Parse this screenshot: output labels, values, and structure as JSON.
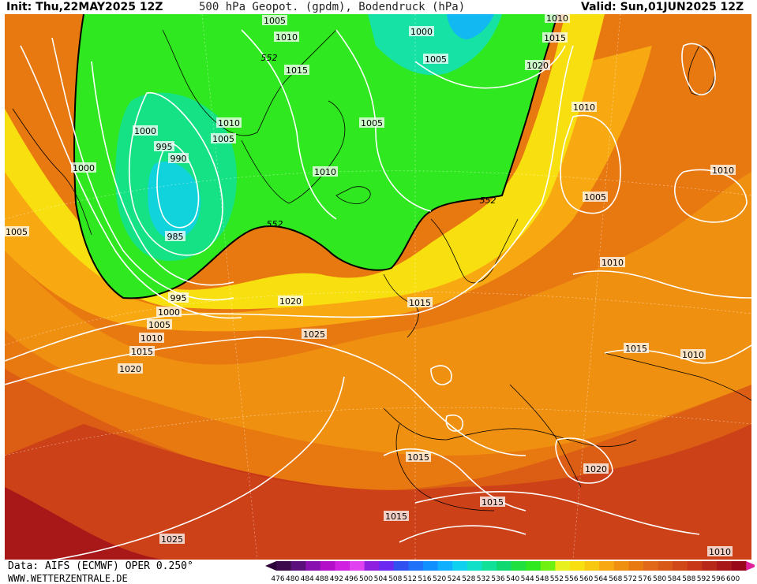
{
  "header": {
    "init": "Init: Thu,22MAY2025 12Z",
    "title": "500 hPa Geopot. (gpdm), Bodendruck (hPa)",
    "valid": "Valid: Sun,01JUN2025 12Z"
  },
  "footer": {
    "source": "Data: AIFS (ECMWF) OPER 0.250°",
    "website": "WWW.WETTERZENTRALE.DE"
  },
  "isobar_labels": [
    "1005",
    "1010",
    "1000",
    "1005",
    "1015",
    "1015",
    "1010",
    "1020",
    "552",
    "1015",
    "1010",
    "1005",
    "1005",
    "1010",
    "1010",
    "1000",
    "995",
    "990",
    "1000",
    "985",
    "1010",
    "1005",
    "1005",
    "552",
    "552",
    "1010",
    "1015",
    "1010",
    "1020",
    "1015",
    "995",
    "1000",
    "1005",
    "1010",
    "1015",
    "1020",
    "1025",
    "1015",
    "1010",
    "1015",
    "1020",
    "1015",
    "1015",
    "1025",
    "1010"
  ],
  "colorbar": {
    "ticks": [
      "476",
      "480",
      "484",
      "488",
      "492",
      "496",
      "500",
      "504",
      "508",
      "512",
      "516",
      "520",
      "524",
      "528",
      "532",
      "536",
      "540",
      "544",
      "548",
      "552",
      "556",
      "560",
      "564",
      "568",
      "572",
      "576",
      "580",
      "584",
      "588",
      "592",
      "596",
      "600"
    ],
    "colors": [
      "#3b0a4a",
      "#5a0f7a",
      "#8a0fb0",
      "#b40fc8",
      "#d020e0",
      "#e040f0",
      "#9020e0",
      "#6a28f0",
      "#3050f0",
      "#2070f8",
      "#1090ff",
      "#10b0ff",
      "#10d0f0",
      "#10e0c8",
      "#10e098",
      "#10d870",
      "#20e040",
      "#30e820",
      "#70f010",
      "#e8f020",
      "#f8e010",
      "#f8c810",
      "#f8a810",
      "#f09010",
      "#e87810",
      "#e06818",
      "#d85818",
      "#d04818",
      "#c83818",
      "#b82818",
      "#a81818",
      "#980818"
    ]
  }
}
